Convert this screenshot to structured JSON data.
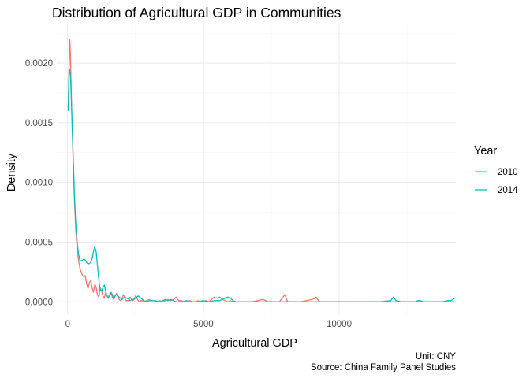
{
  "chart_data": {
    "type": "line",
    "title": "Distribution of Agricultural GDP in Communities",
    "xlabel": "Agricultural GDP",
    "ylabel": "Density",
    "xlim": [
      -400,
      14300
    ],
    "ylim": [
      -0.00011,
      0.00233
    ],
    "x_ticks": [
      0,
      5000,
      10000
    ],
    "x_tick_labels": [
      "0",
      "5000",
      "10000"
    ],
    "y_ticks": [
      0.0,
      0.0005,
      0.001,
      0.0015,
      0.002
    ],
    "y_tick_labels": [
      "0.0000",
      "0.0005",
      "0.0010",
      "0.0015",
      "0.0020"
    ],
    "grid": true,
    "legend": {
      "title": "Year",
      "position": "right",
      "entries": [
        "2010",
        "2014"
      ]
    },
    "caption_lines": [
      "Unit: CNY",
      "Source: China Family Panel Studies"
    ],
    "series": [
      {
        "name": "2010",
        "color": "#F8766D",
        "x": [
          20,
          50,
          80,
          100,
          120,
          150,
          200,
          250,
          300,
          350,
          400,
          450,
          500,
          550,
          600,
          650,
          700,
          750,
          800,
          850,
          900,
          950,
          1000,
          1050,
          1100,
          1150,
          1200,
          1250,
          1300,
          1350,
          1400,
          1450,
          1500,
          1550,
          1600,
          1650,
          1700,
          1750,
          1800,
          1850,
          1900,
          1950,
          2000,
          2050,
          2100,
          2150,
          2200,
          2250,
          2300,
          2350,
          2400,
          2450,
          2500,
          2550,
          2600,
          2650,
          2700,
          2750,
          2800,
          2900,
          3000,
          3100,
          3200,
          3300,
          3400,
          3500,
          3600,
          3700,
          3800,
          3900,
          4000,
          4050,
          4100,
          4200,
          4300,
          4400,
          4500,
          4600,
          4700,
          4800,
          4900,
          5000,
          5100,
          5200,
          5300,
          5400,
          5500,
          5600,
          5700,
          5800,
          5900,
          6000,
          6100,
          6200,
          6400,
          6600,
          6800,
          7000,
          7200,
          7300,
          7400,
          7600,
          7800,
          7900,
          8000,
          8050,
          8100,
          8200,
          8400,
          8600,
          8800,
          9000,
          9100,
          9150,
          9200,
          9300,
          9400,
          9600,
          9800,
          10000,
          10500,
          11000,
          11500,
          12000,
          12500,
          13000,
          13500,
          14000,
          14250
        ],
        "y": [
          0.0016,
          0.00195,
          0.0022,
          0.0021,
          0.0019,
          0.0016,
          0.0012,
          0.00085,
          0.0006,
          0.00045,
          0.00035,
          0.00028,
          0.00025,
          0.00022,
          0.00021,
          0.00022,
          0.00015,
          0.00011,
          0.00016,
          0.00018,
          0.00012,
          8e-05,
          0.00015,
          0.00012,
          6e-05,
          4e-05,
          0.00012,
          9e-05,
          5e-05,
          3e-05,
          8e-05,
          5e-05,
          3e-05,
          6e-05,
          7e-05,
          4e-05,
          2e-05,
          5e-05,
          7e-05,
          4e-05,
          2e-05,
          1e-05,
          2e-05,
          6e-05,
          4e-05,
          1e-05,
          1e-05,
          1e-05,
          4e-05,
          2e-05,
          1e-05,
          2e-05,
          5e-05,
          3e-05,
          1e-05,
          0.0,
          1e-05,
          1e-05,
          0.0,
          1e-05,
          2e-05,
          1e-05,
          1e-05,
          0.0,
          1e-05,
          0.0,
          1e-05,
          2e-05,
          1e-05,
          2e-05,
          4e-05,
          2e-05,
          1e-05,
          1e-05,
          0.0,
          0.0,
          1e-05,
          0.0,
          0.0,
          1e-05,
          0.0,
          0.0,
          1e-05,
          0.0,
          2e-05,
          4e-05,
          3e-05,
          4e-05,
          2e-05,
          1e-05,
          0.0,
          1e-05,
          0.0,
          0.0,
          0.0,
          0.0,
          0.0,
          1e-05,
          2e-05,
          1e-05,
          0.0,
          0.0,
          0.0,
          3e-05,
          6e-05,
          3e-05,
          0.0,
          0.0,
          0.0,
          0.0,
          1e-05,
          2e-05,
          3e-05,
          4e-05,
          2e-05,
          0.0,
          0.0,
          0.0,
          0.0,
          0.0,
          0.0,
          0.0,
          0.0,
          0.0,
          0.0,
          0.0,
          0.0,
          0.0,
          0.0
        ]
      },
      {
        "name": "2014",
        "color": "#00BFC4",
        "x": [
          20,
          50,
          80,
          100,
          120,
          150,
          200,
          250,
          300,
          350,
          400,
          450,
          500,
          550,
          600,
          650,
          700,
          750,
          800,
          850,
          900,
          950,
          1000,
          1050,
          1100,
          1150,
          1200,
          1250,
          1300,
          1350,
          1400,
          1450,
          1500,
          1550,
          1600,
          1650,
          1700,
          1750,
          1800,
          1900,
          2000,
          2100,
          2200,
          2300,
          2400,
          2500,
          2600,
          2700,
          2800,
          2900,
          3000,
          3200,
          3400,
          3500,
          3600,
          3700,
          3800,
          3900,
          4000,
          4200,
          4400,
          4500,
          4600,
          4800,
          5000,
          5200,
          5400,
          5600,
          5800,
          5900,
          6000,
          6100,
          6200,
          6400,
          6600,
          6800,
          7000,
          7500,
          8000,
          8500,
          9000,
          9500,
          10000,
          10500,
          11000,
          11500,
          11900,
          12000,
          12100,
          12300,
          12500,
          12800,
          12900,
          13000,
          13100,
          13300,
          13500,
          13800,
          14000,
          14100,
          14200,
          14250
        ],
        "y": [
          0.0016,
          0.0019,
          0.00195,
          0.0019,
          0.0018,
          0.0016,
          0.00125,
          0.0009,
          0.00065,
          0.0005,
          0.0004,
          0.00035,
          0.00034,
          0.00035,
          0.00036,
          0.00035,
          0.00033,
          0.00032,
          0.00032,
          0.00033,
          0.00036,
          0.00042,
          0.00046,
          0.00042,
          0.0003,
          0.00018,
          0.0001,
          9e-05,
          0.00012,
          0.00014,
          9e-05,
          5e-05,
          4e-05,
          6e-05,
          8e-05,
          6e-05,
          3e-05,
          5e-05,
          6e-05,
          4e-05,
          2e-05,
          4e-05,
          3e-05,
          1e-05,
          2e-05,
          3e-05,
          5e-05,
          3e-05,
          1e-05,
          0.0,
          1e-05,
          1e-05,
          0.0,
          1e-05,
          2e-05,
          1e-05,
          2e-05,
          1e-05,
          0.0,
          0.0,
          1e-05,
          0.0,
          0.0,
          0.0,
          1e-05,
          0.0,
          1e-05,
          1e-05,
          3e-05,
          4e-05,
          3e-05,
          1e-05,
          0.0,
          0.0,
          0.0,
          0.0,
          0.0,
          0.0,
          0.0,
          0.0,
          0.0,
          0.0,
          0.0,
          0.0,
          0.0,
          0.0,
          1e-05,
          4e-05,
          1e-05,
          0.0,
          0.0,
          0.0,
          1e-05,
          1e-05,
          0.0,
          0.0,
          0.0,
          0.0,
          1e-05,
          1e-05,
          2e-05,
          3e-05
        ]
      }
    ]
  }
}
